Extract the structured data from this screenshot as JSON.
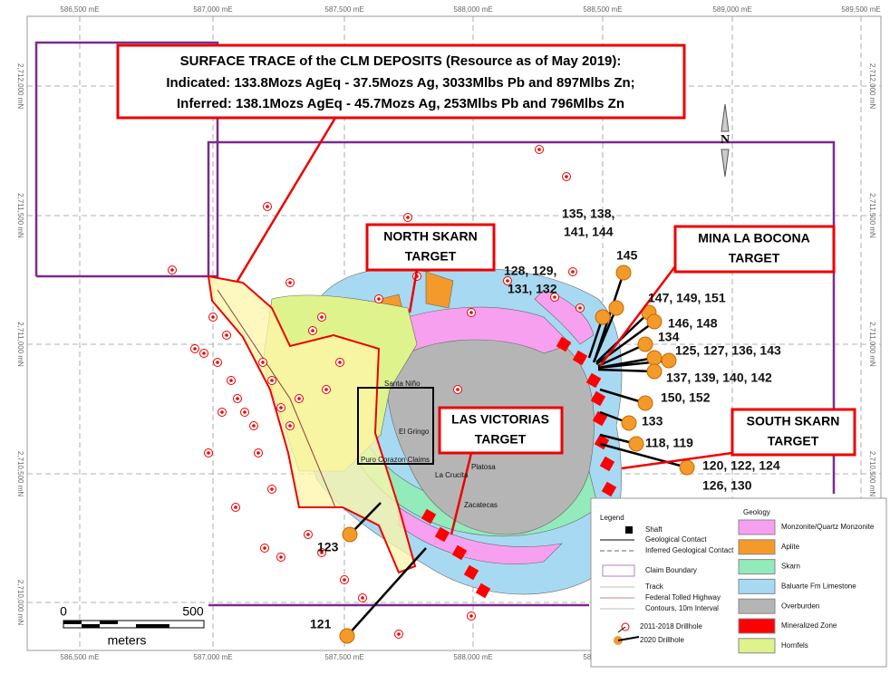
{
  "callout": {
    "lines": [
      "SURFACE TRACE of the CLM DEPOSITS (Resource as of May 2019):",
      "Indicated: 133.8Mozs AgEq  - 37.5Mozs Ag, 3033Mlbs Pb and 897Mlbs Zn;",
      "Inferred: 138.1Mozs AgEq  -    45.7Mozs Ag, 253Mlbs Pb and 796Mlbs Zn"
    ]
  },
  "targets": [
    {
      "lines": [
        "NORTH SKARN",
        "TARGET"
      ]
    },
    {
      "lines": [
        "MINA LA BOCONA",
        "TARGET"
      ]
    },
    {
      "lines": [
        "LAS VICTORIAS",
        "TARGET"
      ]
    },
    {
      "lines": [
        "SOUTH SKARN",
        "TARGET"
      ]
    }
  ],
  "easting_labels": [
    "586,500 mE",
    "587,000 mE",
    "587,500 mE",
    "588,000 mE",
    "588,500 mE",
    "589,000 mE",
    "589,500 mE"
  ],
  "northing_labels": [
    "2,712,000 mN",
    "2,711,500 mN",
    "2,711,000 mN",
    "2,710,500 mN",
    "2,710,000 mN"
  ],
  "drillhole_labels": [
    "135, 138,",
    "141, 144",
    "145",
    "128, 129,",
    "131, 132",
    "147, 149, 151",
    "146, 148",
    "134",
    "125, 127, 136, 143",
    "137, 139, 140, 142",
    "150, 152",
    "133",
    "118, 119",
    "120, 122, 124",
    "126, 130",
    "123",
    "121"
  ],
  "place_names": [
    "Santa Niño",
    "El Gringo",
    "Puro Corazon Claims",
    "Platosa",
    "La Crucita",
    "Zacatecas"
  ],
  "legend": {
    "title": "Legend",
    "items": [
      "Shaft",
      "Geological Contact",
      "Inferred Geological Contact",
      "Claim Boundary",
      "Track",
      "Federal Tolled Highway",
      "Contours, 10m Interval",
      "2011-2018 Drillhole",
      "2020 Drillhole"
    ]
  },
  "geology": {
    "title": "Geology",
    "units": [
      {
        "name": "Monzonite/Quartz Monzonite",
        "color": "#f7a0f0"
      },
      {
        "name": "Aplite",
        "color": "#f39a2a"
      },
      {
        "name": "Skarn",
        "color": "#93eabb"
      },
      {
        "name": "Baluarte Fm Limestone",
        "color": "#a8d9f2"
      },
      {
        "name": "Overburden",
        "color": "#b5b5b5"
      },
      {
        "name": "Mineralized Zone",
        "color": "#ff0000"
      },
      {
        "name": "Hornfels",
        "color": "#dff38c"
      }
    ]
  },
  "scale": {
    "labels": [
      "0",
      "500"
    ],
    "unit": "meters"
  },
  "north": "N"
}
